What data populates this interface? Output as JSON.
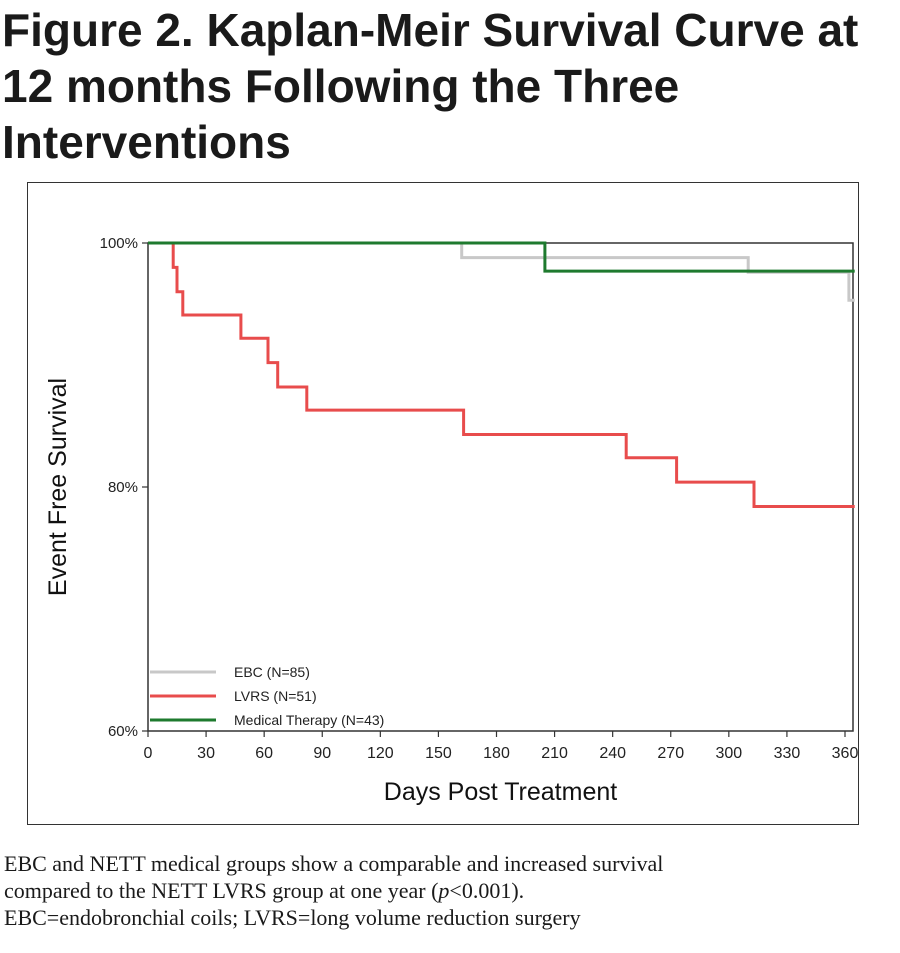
{
  "figure": {
    "title": "Figure 2. Kaplan-Meir Survival Curve at 12 months Following the Three Interventions"
  },
  "caption": {
    "line1": "EBC and NETT medical groups show a comparable and increased survival",
    "line2_a": "compared to the NETT LVRS group at one year (",
    "line2_p": "p",
    "line2_b": "<0.001).",
    "line3": "EBC=endobronchial coils; LVRS=long volume reduction surgery"
  },
  "chart_data": {
    "type": "line",
    "step": true,
    "xlabel": "Days Post Treatment",
    "ylabel": "Event Free Survival",
    "xlim": [
      0,
      365
    ],
    "ylim": [
      60,
      100
    ],
    "xticks": [
      0,
      30,
      60,
      90,
      120,
      150,
      180,
      210,
      240,
      270,
      300,
      330,
      360
    ],
    "yticks": [
      60,
      80,
      100
    ],
    "yticklabels": [
      "60%",
      "80%",
      "100%"
    ],
    "legend_position": "bottom-left",
    "grid": false,
    "series": [
      {
        "name": "EBC (N=85)",
        "color": "#c8c8c8",
        "x": [
          0,
          162,
          162,
          310,
          310,
          362,
          362,
          365
        ],
        "y": [
          100,
          100,
          98.8,
          98.8,
          97.6,
          97.6,
          95.3,
          95.3
        ]
      },
      {
        "name": "LVRS (N=51)",
        "color": "#e84c4c",
        "x": [
          0,
          13,
          13,
          15,
          15,
          18,
          18,
          48,
          48,
          62,
          62,
          67,
          67,
          82,
          82,
          163,
          163,
          247,
          247,
          273,
          273,
          313,
          313,
          365
        ],
        "y": [
          100,
          100,
          98,
          98,
          96,
          96,
          94.1,
          94.1,
          92.2,
          92.2,
          90.2,
          90.2,
          88.2,
          88.2,
          86.3,
          86.3,
          84.3,
          84.3,
          82.4,
          82.4,
          80.4,
          80.4,
          78.4,
          78.4
        ]
      },
      {
        "name": "Medical Therapy (N=43)",
        "color": "#1e7a2e",
        "x": [
          0,
          205,
          205,
          365
        ],
        "y": [
          100,
          100,
          97.7,
          97.7
        ]
      }
    ]
  }
}
